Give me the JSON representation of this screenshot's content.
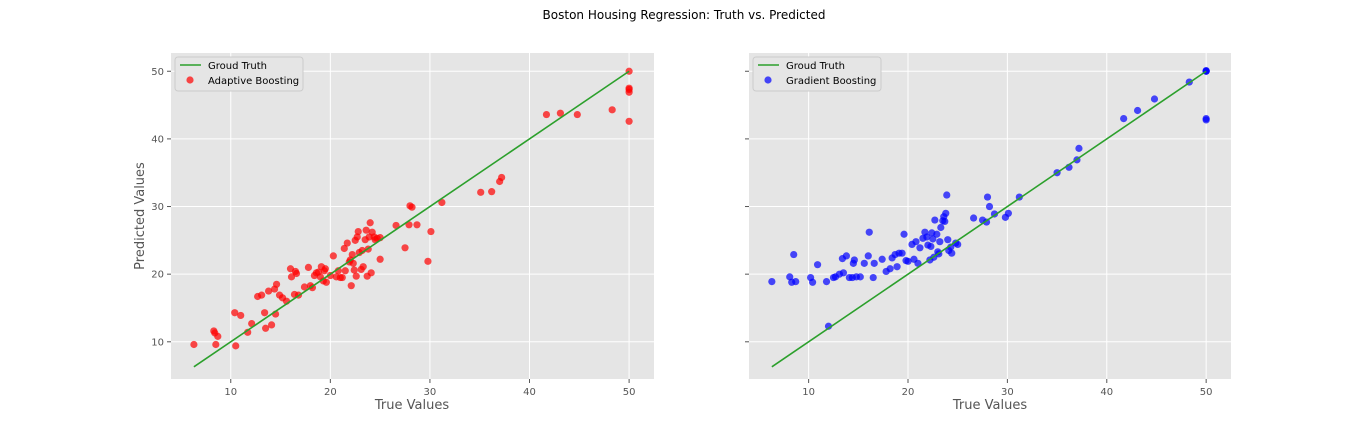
{
  "suptitle": "Boston Housing Regression: Truth vs. Predicted",
  "colors": {
    "panel_bg": "#e5e5e5",
    "grid": "#ffffff",
    "truth_line": "#2ca02c",
    "ada": "#ff0000",
    "gbr": "#0000ff",
    "tick_text": "#555555"
  },
  "chart_data": [
    {
      "type": "scatter",
      "title": "",
      "xlabel": "True Values",
      "ylabel": "Predicted Values",
      "xlim": [
        4,
        52.5
      ],
      "ylim": [
        4.5,
        52.7
      ],
      "xticks": [
        10,
        20,
        30,
        40,
        50
      ],
      "yticks": [
        10,
        20,
        30,
        40,
        50
      ],
      "grid": true,
      "legend_position": "top-left",
      "legend": [
        "Groud Truth",
        "Adaptive Boosting"
      ],
      "series": [
        {
          "name": "Groud Truth",
          "kind": "line",
          "x": [
            6.3,
            50
          ],
          "y": [
            6.3,
            50
          ]
        },
        {
          "name": "Adaptive Boosting",
          "kind": "scatter",
          "color": "#ff0000",
          "x": [
            6.3,
            8.3,
            8.5,
            8.4,
            8.7,
            10.4,
            10.5,
            11.0,
            11.7,
            12.1,
            12.7,
            13.1,
            13.4,
            13.5,
            13.8,
            14.1,
            14.4,
            14.5,
            14.6,
            14.9,
            15.2,
            15.6,
            16.0,
            16.1,
            16.4,
            16.5,
            16.6,
            16.8,
            17.4,
            17.8,
            18.0,
            18.2,
            18.4,
            18.6,
            18.8,
            19.0,
            19.1,
            19.3,
            19.4,
            19.5,
            19.6,
            20.0,
            20.3,
            20.6,
            20.8,
            21.0,
            21.2,
            21.4,
            21.5,
            21.7,
            21.9,
            22.0,
            22.1,
            22.2,
            22.3,
            22.4,
            22.5,
            22.6,
            22.7,
            22.8,
            22.9,
            23.1,
            23.2,
            23.3,
            23.5,
            23.6,
            23.7,
            23.8,
            23.9,
            24.0,
            24.1,
            24.2,
            24.4,
            24.5,
            24.7,
            25.0,
            25.0,
            26.6,
            27.5,
            27.9,
            28.0,
            28.2,
            28.7,
            29.8,
            30.1,
            31.2,
            35.1,
            36.2,
            37.0,
            37.2,
            41.7,
            43.1,
            44.8,
            48.3,
            50.0,
            50.0,
            50.0,
            50.0,
            50.0
          ],
          "y": [
            9.6,
            11.6,
            9.6,
            11.3,
            10.8,
            14.3,
            9.4,
            13.9,
            11.4,
            12.7,
            16.7,
            16.9,
            14.3,
            12.0,
            17.5,
            12.5,
            17.8,
            14.1,
            18.5,
            16.9,
            16.5,
            16.0,
            20.8,
            19.6,
            17.0,
            20.4,
            20.1,
            16.9,
            18.1,
            21.0,
            18.3,
            18.0,
            19.8,
            20.2,
            20.3,
            19.6,
            21.1,
            19.0,
            20.5,
            20.8,
            18.8,
            19.8,
            22.7,
            19.6,
            20.5,
            19.5,
            19.5,
            23.8,
            20.5,
            24.6,
            21.8,
            22.1,
            18.3,
            22.9,
            21.6,
            20.6,
            25.0,
            19.7,
            25.5,
            26.3,
            23.2,
            20.7,
            23.5,
            21.1,
            25.1,
            26.5,
            19.7,
            23.7,
            25.5,
            27.6,
            20.2,
            26.2,
            25.5,
            25.1,
            25.3,
            22.2,
            25.4,
            27.2,
            23.9,
            27.3,
            30.1,
            29.9,
            27.3,
            21.9,
            26.3,
            30.6,
            32.1,
            32.2,
            33.7,
            34.3,
            43.6,
            43.8,
            43.6,
            44.3,
            47.3,
            46.9,
            47.5,
            42.6,
            50.0
          ]
        }
      ]
    },
    {
      "type": "scatter",
      "title": "",
      "xlabel": "True Values",
      "ylabel": "",
      "xlim": [
        4,
        52.5
      ],
      "ylim": [
        4.5,
        52.7
      ],
      "xticks": [
        10,
        20,
        30,
        40,
        50
      ],
      "yticks": [
        10,
        20,
        30,
        40,
        50
      ],
      "grid": true,
      "legend_position": "top-left",
      "legend": [
        "Groud Truth",
        "Gradient Boosting"
      ],
      "series": [
        {
          "name": "Groud Truth",
          "kind": "line",
          "x": [
            6.3,
            50
          ],
          "y": [
            6.3,
            50
          ]
        },
        {
          "name": "Gradient Boosting",
          "kind": "scatter",
          "color": "#0000ff",
          "x": [
            6.3,
            8.1,
            8.3,
            8.5,
            8.7,
            10.2,
            10.4,
            10.9,
            11.8,
            12.0,
            12.5,
            12.7,
            13.1,
            13.4,
            13.5,
            13.8,
            14.1,
            14.4,
            14.5,
            14.6,
            14.8,
            15.2,
            15.6,
            16.0,
            16.1,
            16.5,
            16.6,
            17.4,
            17.8,
            18.2,
            18.4,
            18.7,
            18.9,
            19.1,
            19.4,
            19.6,
            19.8,
            20.0,
            20.4,
            20.6,
            20.8,
            21.0,
            21.2,
            21.5,
            21.7,
            21.9,
            22.0,
            22.2,
            22.3,
            22.4,
            22.5,
            22.6,
            22.7,
            22.9,
            23.0,
            23.1,
            23.2,
            23.3,
            23.5,
            23.6,
            23.7,
            23.8,
            23.9,
            24.0,
            24.1,
            24.3,
            24.4,
            24.8,
            25.0,
            26.6,
            27.5,
            27.9,
            28.0,
            28.2,
            28.7,
            29.8,
            30.1,
            31.2,
            35.0,
            36.2,
            37.0,
            37.2,
            41.7,
            43.1,
            44.8,
            48.3,
            50.0,
            50.0,
            50.0,
            50.0,
            50.0
          ],
          "y": [
            18.9,
            19.6,
            18.8,
            22.9,
            18.9,
            19.5,
            18.8,
            21.4,
            18.9,
            12.3,
            19.5,
            19.6,
            20.0,
            22.3,
            20.2,
            22.7,
            19.5,
            19.5,
            21.6,
            22.1,
            19.6,
            19.6,
            21.6,
            22.7,
            26.2,
            19.5,
            21.6,
            22.2,
            20.4,
            20.8,
            22.4,
            22.9,
            21.1,
            23.1,
            23.1,
            25.9,
            22.0,
            21.9,
            24.4,
            22.2,
            24.8,
            21.6,
            23.9,
            25.3,
            26.2,
            25.5,
            24.3,
            22.1,
            24.1,
            26.1,
            25.2,
            22.5,
            28.0,
            25.9,
            23.3,
            23.0,
            24.8,
            26.9,
            27.9,
            28.5,
            27.8,
            29.0,
            31.7,
            25.1,
            23.5,
            24.0,
            23.1,
            24.6,
            24.4,
            28.3,
            28.0,
            27.7,
            31.4,
            30.0,
            28.9,
            28.4,
            29.0,
            31.4,
            35.0,
            35.8,
            36.9,
            38.6,
            43.0,
            44.2,
            45.9,
            48.4,
            50.0,
            50.1,
            42.8,
            43.0,
            50.0
          ]
        }
      ]
    }
  ]
}
